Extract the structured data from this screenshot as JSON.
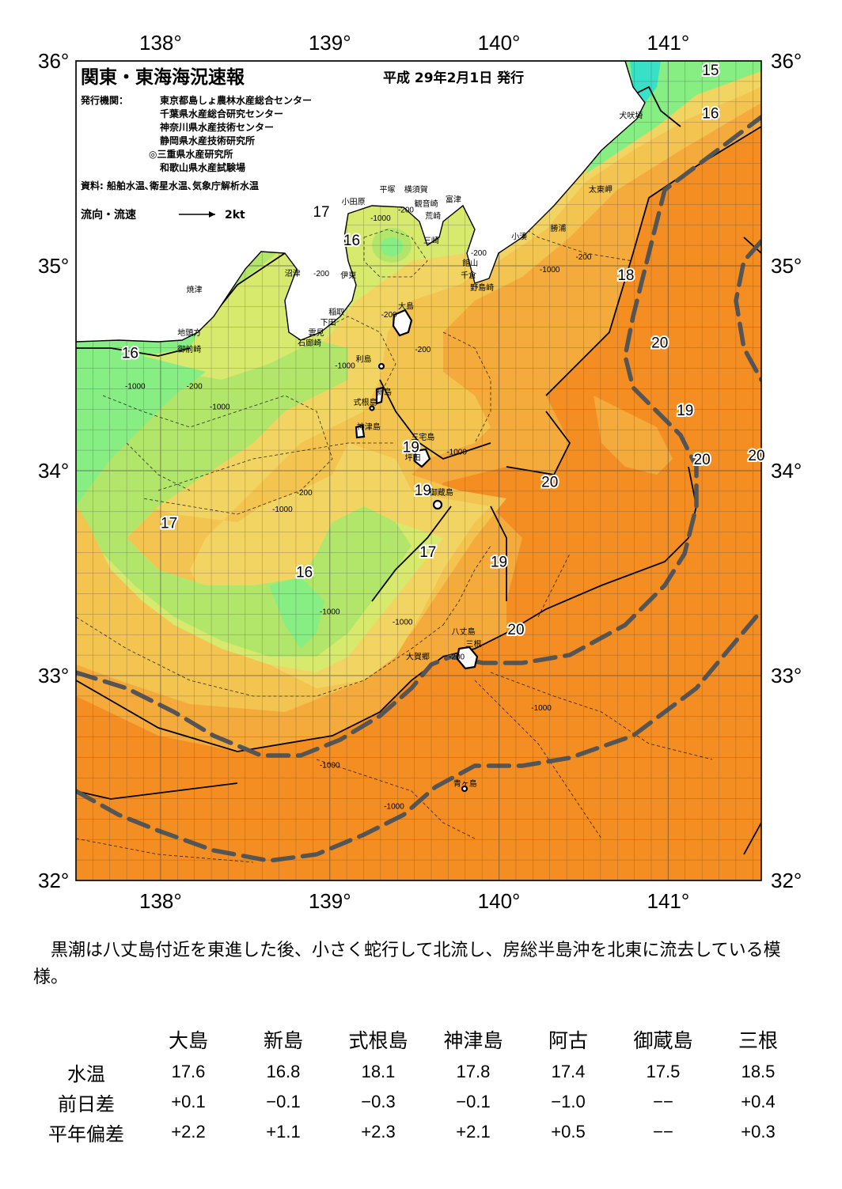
{
  "header": {
    "title": "関東・東海海況速報",
    "date": "平成 29年2月1日 発行"
  },
  "issuers": {
    "label": "発行機関：",
    "list": [
      "東京都島しょ農林水産総合センター",
      "千葉県水産総合研究センター",
      "神奈川県水産技術センター",
      "静岡県水産技術研究所",
      "◎三重県水産研究所",
      "和歌山県水産試験場"
    ],
    "source": "資料: 船舶水温､衛星水温､気象庁解析水温"
  },
  "legend": {
    "flow_label": "流向・流速",
    "scale_label": "2kt"
  },
  "axes": {
    "lon_labels": [
      "138°",
      "139°",
      "140°",
      "141°"
    ],
    "lat_labels": [
      "36°",
      "35°",
      "34°",
      "33°",
      "32°"
    ]
  },
  "map": {
    "extent": {
      "lon_min": 137.5,
      "lon_max": 141.55,
      "lat_min": 32.0,
      "lat_max": 36.0
    },
    "colors": {
      "land": "#ffffff",
      "sst_15": "#38e0c8",
      "sst_16": "#86ee82",
      "sst_17": "#b2e66a",
      "sst_17_5": "#d8ea6e",
      "sst_18": "#f2d462",
      "sst_18_5": "#f4c450",
      "sst_19": "#f5aa3c",
      "sst_20": "#f48e22",
      "kuroshio_axis": "#555555"
    },
    "sst_labels": [
      {
        "text": "15",
        "lon": 141.25,
        "lat": 35.93
      },
      {
        "text": "16",
        "lon": 141.25,
        "lat": 35.72
      },
      {
        "text": "17",
        "lon": 138.95,
        "lat": 35.24
      },
      {
        "text": "16",
        "lon": 139.13,
        "lat": 35.1
      },
      {
        "text": "18",
        "lon": 140.75,
        "lat": 34.93
      },
      {
        "text": "16",
        "lon": 137.82,
        "lat": 34.55
      },
      {
        "text": "20",
        "lon": 140.95,
        "lat": 34.6
      },
      {
        "text": "19",
        "lon": 141.1,
        "lat": 34.27
      },
      {
        "text": "19",
        "lon": 139.48,
        "lat": 34.09
      },
      {
        "text": "20",
        "lon": 141.2,
        "lat": 34.03
      },
      {
        "text": "20",
        "lon": 141.55,
        "lat": 34.05
      },
      {
        "text": "20",
        "lon": 140.3,
        "lat": 33.92
      },
      {
        "text": "19",
        "lon": 139.55,
        "lat": 33.88
      },
      {
        "text": "17",
        "lon": 138.05,
        "lat": 33.72
      },
      {
        "text": "17",
        "lon": 139.58,
        "lat": 33.58
      },
      {
        "text": "19",
        "lon": 140.0,
        "lat": 33.53
      },
      {
        "text": "16",
        "lon": 138.85,
        "lat": 33.48
      },
      {
        "text": "20",
        "lon": 140.1,
        "lat": 33.2
      }
    ],
    "depth_labels": [
      {
        "text": "-200",
        "lon": 139.45,
        "lat": 35.26
      },
      {
        "text": "-1000",
        "lon": 139.3,
        "lat": 35.22
      },
      {
        "text": "-1000",
        "lon": 140.3,
        "lat": 34.97
      },
      {
        "text": "-200",
        "lon": 139.88,
        "lat": 35.05
      },
      {
        "text": "-200",
        "lon": 140.5,
        "lat": 35.03
      },
      {
        "text": "-200",
        "lon": 138.95,
        "lat": 34.95
      },
      {
        "text": "-200",
        "lon": 139.35,
        "lat": 34.75
      },
      {
        "text": "-200",
        "lon": 139.55,
        "lat": 34.58
      },
      {
        "text": "-1000",
        "lon": 139.09,
        "lat": 34.5
      },
      {
        "text": "-1000",
        "lon": 137.85,
        "lat": 34.4
      },
      {
        "text": "-200",
        "lon": 138.2,
        "lat": 34.4
      },
      {
        "text": "-1000",
        "lon": 138.35,
        "lat": 34.3
      },
      {
        "text": "-1000",
        "lon": 139.75,
        "lat": 34.08
      },
      {
        "text": "-200",
        "lon": 138.85,
        "lat": 33.88
      },
      {
        "text": "-1000",
        "lon": 138.72,
        "lat": 33.8
      },
      {
        "text": "-1000",
        "lon": 139.0,
        "lat": 33.3
      },
      {
        "text": "-1000",
        "lon": 139.43,
        "lat": 33.25
      },
      {
        "text": "-200",
        "lon": 139.75,
        "lat": 33.08
      },
      {
        "text": "-1000",
        "lon": 140.25,
        "lat": 32.83
      },
      {
        "text": "-1000",
        "lon": 139.0,
        "lat": 32.55
      },
      {
        "text": "-1000",
        "lon": 139.38,
        "lat": 32.35
      }
    ],
    "places": [
      {
        "text": "犬吠埼",
        "lon": 140.78,
        "lat": 35.72
      },
      {
        "text": "太東岬",
        "lon": 140.6,
        "lat": 35.36
      },
      {
        "text": "勝浦",
        "lon": 140.35,
        "lat": 35.17
      },
      {
        "text": "小湊",
        "lon": 140.12,
        "lat": 35.13
      },
      {
        "text": "富津",
        "lon": 139.73,
        "lat": 35.31
      },
      {
        "text": "平塚",
        "lon": 139.34,
        "lat": 35.36
      },
      {
        "text": "横須賀",
        "lon": 139.51,
        "lat": 35.36
      },
      {
        "text": "観音崎",
        "lon": 139.57,
        "lat": 35.29
      },
      {
        "text": "荒崎",
        "lon": 139.61,
        "lat": 35.23
      },
      {
        "text": "小田原",
        "lon": 139.14,
        "lat": 35.3
      },
      {
        "text": "三崎",
        "lon": 139.6,
        "lat": 35.11
      },
      {
        "text": "館山",
        "lon": 139.83,
        "lat": 35.0
      },
      {
        "text": "千倉",
        "lon": 139.82,
        "lat": 34.94
      },
      {
        "text": "野島崎",
        "lon": 139.9,
        "lat": 34.88
      },
      {
        "text": "沼津",
        "lon": 138.78,
        "lat": 34.95
      },
      {
        "text": "伊東",
        "lon": 139.11,
        "lat": 34.94
      },
      {
        "text": "焼津",
        "lon": 138.2,
        "lat": 34.87
      },
      {
        "text": "大島",
        "lon": 139.45,
        "lat": 34.79
      },
      {
        "text": "稲取",
        "lon": 139.04,
        "lat": 34.76
      },
      {
        "text": "下田",
        "lon": 138.99,
        "lat": 34.71
      },
      {
        "text": "雲見",
        "lon": 138.92,
        "lat": 34.66
      },
      {
        "text": "石廊崎",
        "lon": 138.88,
        "lat": 34.61
      },
      {
        "text": "地頭方",
        "lon": 138.17,
        "lat": 34.66
      },
      {
        "text": "御前崎",
        "lon": 138.17,
        "lat": 34.58
      },
      {
        "text": "利島",
        "lon": 139.2,
        "lat": 34.53
      },
      {
        "text": "新島",
        "lon": 139.32,
        "lat": 34.37
      },
      {
        "text": "式根島",
        "lon": 139.21,
        "lat": 34.32
      },
      {
        "text": "神津島",
        "lon": 139.23,
        "lat": 34.2
      },
      {
        "text": "三宅島",
        "lon": 139.55,
        "lat": 34.15
      },
      {
        "text": "坪田",
        "lon": 139.49,
        "lat": 34.05
      },
      {
        "text": "御蔵島",
        "lon": 139.66,
        "lat": 33.88
      },
      {
        "text": "八丈島",
        "lon": 139.79,
        "lat": 33.2
      },
      {
        "text": "三根",
        "lon": 139.85,
        "lat": 33.14
      },
      {
        "text": "大賀郷",
        "lon": 139.52,
        "lat": 33.08
      },
      {
        "text": "青ヶ島",
        "lon": 139.8,
        "lat": 32.46
      }
    ]
  },
  "summary_text": "黒潮は八丈島付近を東進した後、小さく蛇行して北流し、房総半島沖を北東に流去している模様。",
  "table": {
    "columns": [
      "大島",
      "新島",
      "式根島",
      "神津島",
      "阿古",
      "御蔵島",
      "三根"
    ],
    "rows": [
      {
        "label": "水温",
        "values": [
          "17.6",
          "16.8",
          "18.1",
          "17.8",
          "17.4",
          "17.5",
          "18.5"
        ]
      },
      {
        "label": "前日差",
        "values": [
          "+0.1",
          "−0.1",
          "−0.3",
          "−0.1",
          "−1.0",
          "−−",
          "+0.4"
        ]
      },
      {
        "label": "平年偏差",
        "values": [
          "+2.2",
          "+1.1",
          "+2.3",
          "+2.1",
          "+0.5",
          "−−",
          "+0.3"
        ]
      }
    ]
  }
}
